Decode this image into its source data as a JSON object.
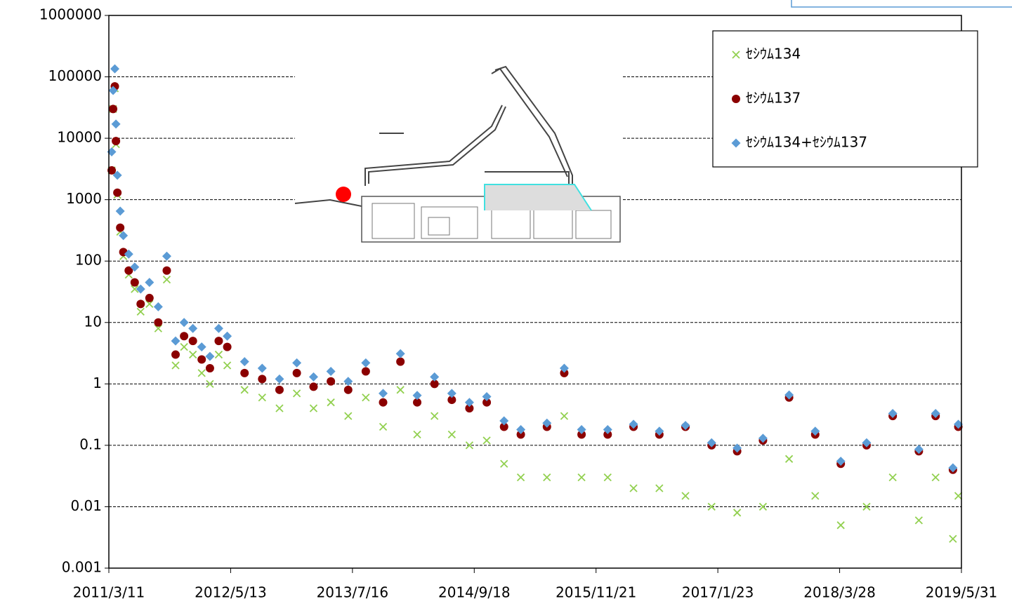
{
  "chart_data": {
    "type": "scatter",
    "x": [
      "2011/3/21",
      "2011/3/26",
      "2011/4/1",
      "2011/4/5",
      "2011/4/10",
      "2011/4/20",
      "2011/5/1",
      "2011/5/20",
      "2011/6/10",
      "2011/7/1",
      "2011/8/1",
      "2011/9/1",
      "2011/10/1",
      "2011/11/1",
      "2011/12/1",
      "2012/1/1",
      "2012/2/1",
      "2012/3/1",
      "2012/4/1",
      "2012/5/1",
      "2012/7/1",
      "2012/9/1",
      "2012/11/1",
      "2013/1/1",
      "2013/3/1",
      "2013/5/1",
      "2013/7/1",
      "2013/9/1",
      "2013/11/1",
      "2014/1/1",
      "2014/3/1",
      "2014/5/1",
      "2014/7/1",
      "2014/9/1",
      "2014/11/1",
      "2015/1/1",
      "2015/3/1",
      "2015/6/1",
      "2015/8/1",
      "2015/10/1",
      "2016/1/1",
      "2016/4/1",
      "2016/7/1",
      "2016/10/1",
      "2017/1/1",
      "2017/4/1",
      "2017/7/1",
      "2017/10/1",
      "2018/1/1",
      "2018/4/1",
      "2018/7/1",
      "2018/10/1",
      "2019/1/1",
      "2019/3/1",
      "2019/5/1",
      "2019/5/20"
    ],
    "series": [
      {
        "name": "ｾｼｳﾑ134",
        "color": "#92d050",
        "marker": "x",
        "values": [
          3000,
          30000,
          65000,
          8000,
          1200,
          300,
          120,
          60,
          35,
          15,
          20,
          8,
          50,
          2,
          4,
          3,
          1.5,
          1,
          3,
          2,
          0.8,
          0.6,
          0.4,
          0.7,
          0.4,
          0.5,
          0.3,
          0.6,
          0.2,
          0.8,
          0.15,
          0.3,
          0.15,
          0.1,
          0.12,
          0.05,
          0.03,
          0.03,
          0.3,
          0.03,
          0.03,
          0.02,
          0.02,
          0.015,
          0.01,
          0.008,
          0.01,
          0.06,
          0.015,
          0.005,
          0.01,
          0.03,
          0.006,
          0.03,
          0.003,
          0.015
        ]
      },
      {
        "name": "ｾｼｳﾑ137",
        "color": "#8b0000",
        "marker": "circle",
        "values": [
          3000,
          30000,
          70000,
          9000,
          1300,
          350,
          140,
          70,
          45,
          20,
          25,
          10,
          70,
          3,
          6,
          5,
          2.5,
          1.8,
          5,
          4,
          1.5,
          1.2,
          0.8,
          1.5,
          0.9,
          1.1,
          0.8,
          1.6,
          0.5,
          2.3,
          0.5,
          1,
          0.55,
          0.4,
          0.5,
          0.2,
          0.15,
          0.2,
          1.5,
          0.15,
          0.15,
          0.2,
          0.15,
          0.2,
          0.1,
          0.08,
          0.12,
          0.6,
          0.15,
          0.05,
          0.1,
          0.3,
          0.08,
          0.3,
          0.04,
          0.2
        ]
      },
      {
        "name": "ｾｼｳﾑ134+ｾｼｳﾑ137",
        "color": "#5b9bd5",
        "marker": "diamond",
        "values": [
          6000,
          60000,
          135000,
          17000,
          2500,
          650,
          260,
          130,
          80,
          35,
          45,
          18,
          120,
          5,
          10,
          8,
          4,
          2.8,
          8,
          6,
          2.3,
          1.8,
          1.2,
          2.2,
          1.3,
          1.6,
          1.1,
          2.2,
          0.7,
          3.1,
          0.65,
          1.3,
          0.7,
          0.5,
          0.62,
          0.25,
          0.18,
          0.23,
          1.8,
          0.18,
          0.18,
          0.22,
          0.17,
          0.21,
          0.11,
          0.09,
          0.13,
          0.66,
          0.17,
          0.055,
          0.11,
          0.33,
          0.086,
          0.33,
          0.043,
          0.22
        ]
      }
    ],
    "xlim": [
      "2011/3/11",
      "2019/5/31"
    ],
    "xticks": [
      "2011/3/11",
      "2012/5/13",
      "2013/7/16",
      "2014/9/18",
      "2015/11/21",
      "2017/1/23",
      "2018/3/28",
      "2019/5/31"
    ],
    "ylim": [
      0.001,
      1000000
    ],
    "yticks": [
      0.001,
      0.01,
      0.1,
      1,
      10,
      100,
      1000,
      10000,
      100000,
      1000000
    ],
    "log_y": true,
    "grid": true,
    "legend": "upper right"
  }
}
